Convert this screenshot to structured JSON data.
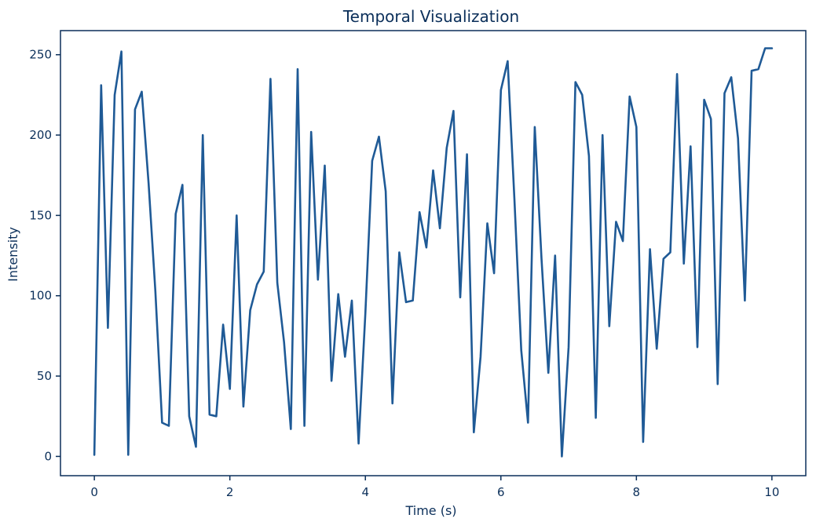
{
  "chart_data": {
    "type": "line",
    "title": "Temporal Visualization",
    "xlabel": "Time (s)",
    "ylabel": "Intensity",
    "xlim": [
      -0.5,
      10.5
    ],
    "ylim": [
      -12,
      265
    ],
    "xticks": [
      0,
      2,
      4,
      6,
      8,
      10
    ],
    "yticks": [
      0,
      50,
      100,
      150,
      200,
      250
    ],
    "grid": false,
    "line_color": "#1f5a96",
    "axis_color": "#0b2f5a",
    "series": [
      {
        "x": [
          0,
          0.1,
          0.2,
          0.3,
          0.4,
          0.5,
          0.6,
          0.7,
          0.8,
          0.9,
          1.0,
          1.1,
          1.2,
          1.3,
          1.4,
          1.5,
          1.6,
          1.7,
          1.8,
          1.9,
          2.0,
          2.1,
          2.2,
          2.3,
          2.4,
          2.5,
          2.6,
          2.7,
          2.8,
          2.9,
          3.0,
          3.1,
          3.2,
          3.3,
          3.4,
          3.5,
          3.6,
          3.7,
          3.8,
          3.9,
          4.0,
          4.1,
          4.2,
          4.3,
          4.4,
          4.5,
          4.6,
          4.7,
          4.8,
          4.9,
          5.0,
          5.1,
          5.2,
          5.3,
          5.4,
          5.5,
          5.6,
          5.7,
          5.8,
          5.9,
          6.0,
          6.1,
          6.2,
          6.3,
          6.4,
          6.5,
          6.6,
          6.7,
          6.8,
          6.9,
          7.0,
          7.1,
          7.2,
          7.3,
          7.4,
          7.5,
          7.6,
          7.7,
          7.8,
          7.9,
          8.0,
          8.1,
          8.2,
          8.3,
          8.4,
          8.5,
          8.6,
          8.7,
          8.8,
          8.9,
          9.0,
          9.1,
          9.2,
          9.3,
          9.4,
          9.5,
          9.6,
          9.7,
          9.8,
          9.9,
          10.0
        ],
        "values": [
          1,
          231,
          80,
          225,
          252,
          1,
          216,
          227,
          170,
          103,
          21,
          19,
          151,
          169,
          25,
          6,
          200,
          26,
          25,
          82,
          42,
          150,
          31,
          91,
          107,
          115,
          235,
          108,
          71,
          17,
          241,
          19,
          202,
          110,
          181,
          47,
          101,
          62,
          97,
          8,
          89,
          184,
          199,
          165,
          33,
          127,
          96,
          97,
          152,
          130,
          178,
          142,
          192,
          215,
          99,
          188,
          15,
          62,
          145,
          114,
          228,
          246,
          160,
          66,
          21,
          205,
          123,
          52,
          125,
          0,
          68,
          233,
          225,
          187,
          24,
          200,
          81,
          146,
          134,
          224,
          205,
          9,
          129,
          67,
          123,
          127,
          238,
          120,
          193,
          68,
          222,
          210,
          45,
          226,
          236,
          198,
          97,
          240,
          241,
          254,
          254
        ]
      }
    ]
  }
}
